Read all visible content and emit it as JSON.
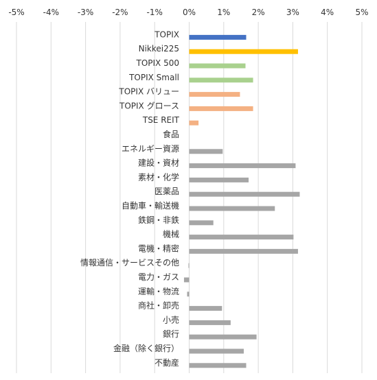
{
  "chart_data": {
    "type": "bar",
    "orientation": "horizontal",
    "xlim": [
      -5,
      5
    ],
    "x_ticks": [
      "-5%",
      "-4%",
      "-3%",
      "-2%",
      "-1%",
      "0%",
      "1%",
      "2%",
      "3%",
      "4%",
      "5%"
    ],
    "x_tick_values": [
      -5,
      -4,
      -3,
      -2,
      -1,
      0,
      1,
      2,
      3,
      4,
      5
    ],
    "unit": "%",
    "grid": "vertical",
    "x_axis_position": "top",
    "categories": [
      "TOPIX",
      "Nikkei225",
      "TOPIX 500",
      "TOPIX Small",
      "TOPIX バリュー",
      "TOPIX グロース",
      "TSE REIT",
      "食品",
      "エネルギー資源",
      "建設・資材",
      "素材・化学",
      "医薬品",
      "自動車・輸送機",
      "鉄鋼・非鉄",
      "機械",
      "電機・精密",
      "情報通信・サービスその他",
      "電力・ガス",
      "運輸・物流",
      "商社・卸売",
      "小売",
      "銀行",
      "金融（除く銀行）",
      "不動産"
    ],
    "values": [
      1.65,
      3.15,
      1.63,
      1.85,
      1.47,
      1.85,
      0.27,
      0.0,
      0.97,
      3.08,
      1.72,
      3.2,
      2.48,
      0.7,
      3.02,
      3.15,
      -0.02,
      -0.15,
      -0.06,
      0.95,
      1.2,
      1.95,
      1.58,
      1.65
    ],
    "colors": [
      "#4472C4",
      "#FFC000",
      "#A9D18E",
      "#A9D18E",
      "#F4B183",
      "#F4B183",
      "#F4B183",
      "#A6A6A6",
      "#A6A6A6",
      "#A6A6A6",
      "#A6A6A6",
      "#A6A6A6",
      "#A6A6A6",
      "#A6A6A6",
      "#A6A6A6",
      "#A6A6A6",
      "#A6A6A6",
      "#A6A6A6",
      "#A6A6A6",
      "#A6A6A6",
      "#A6A6A6",
      "#A6A6A6",
      "#A6A6A6",
      "#A6A6A6"
    ],
    "gridline_color": "#D9D9D9"
  }
}
